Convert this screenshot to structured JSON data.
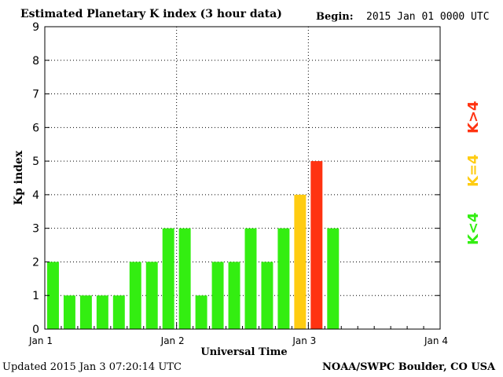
{
  "header": {
    "title": "Estimated Planetary K index (3 hour data)",
    "begin_label": "Begin:",
    "begin_value": "2015 Jan 01 0000 UTC"
  },
  "footer": {
    "updated": "Updated 2015 Jan  3 07:20:14 UTC",
    "source": "NOAA/SWPC Boulder, CO USA"
  },
  "legend": {
    "low": "K<4",
    "mid": "K=4",
    "high": "K>4"
  },
  "colors": {
    "low": "#33ee11",
    "mid": "#ffcc11",
    "high": "#ff3311",
    "grid": "#000000"
  },
  "chart_data": {
    "type": "bar",
    "ylabel": "Kp index",
    "xlabel": "Universal Time",
    "ylim": [
      0,
      9
    ],
    "yticks": [
      "0",
      "1",
      "2",
      "3",
      "4",
      "5",
      "6",
      "7",
      "8",
      "9"
    ],
    "xticks": [
      "Jan 1",
      "Jan 2",
      "Jan 3",
      "Jan 4"
    ],
    "interval_hours": 3,
    "values": [
      2,
      1,
      1,
      1,
      1,
      2,
      2,
      3,
      3,
      1,
      2,
      2,
      3,
      2,
      3,
      4,
      5,
      3
    ],
    "grid": true
  }
}
